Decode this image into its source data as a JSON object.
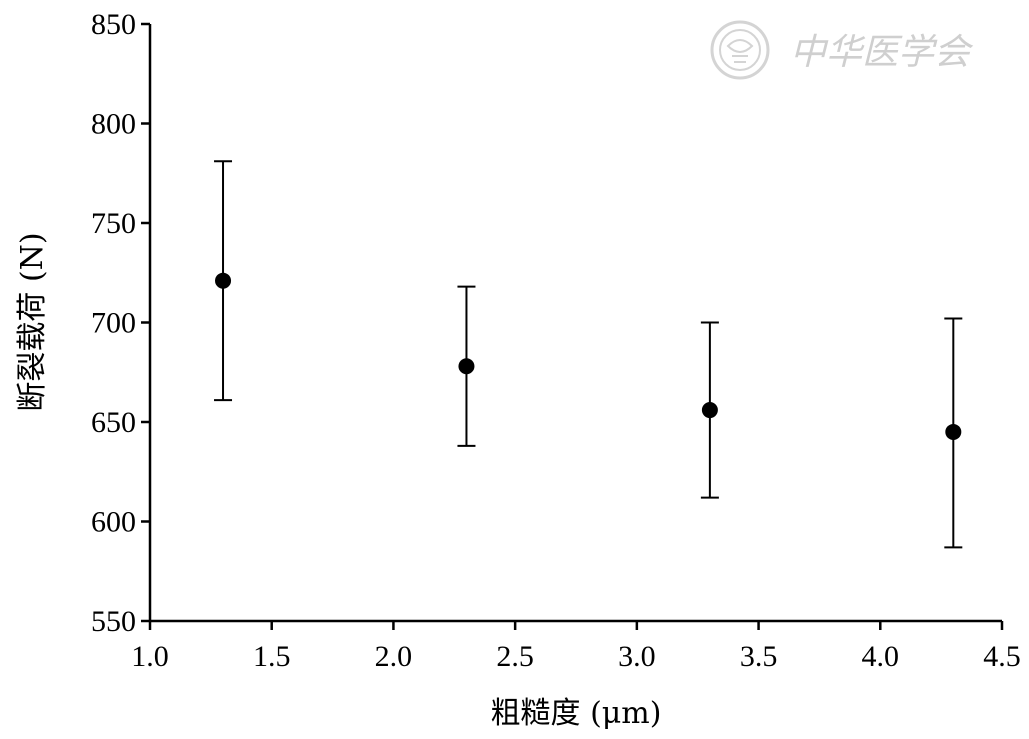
{
  "chart_data": {
    "type": "scatter",
    "xlabel": "粗糙度 (μm)",
    "ylabel": "断裂载荷 (N)",
    "xlim": [
      1.0,
      4.5
    ],
    "ylim": [
      550,
      850
    ],
    "x_ticks": [
      "1.0",
      "1.5",
      "2.0",
      "2.5",
      "3.0",
      "3.5",
      "4.0",
      "4.5"
    ],
    "y_ticks": [
      "550",
      "600",
      "650",
      "700",
      "750",
      "800",
      "850"
    ],
    "grid": false,
    "error_bars": true,
    "points": [
      {
        "x": 1.3,
        "y": 721,
        "err_low": 661,
        "err_high": 781
      },
      {
        "x": 2.3,
        "y": 678,
        "err_low": 638,
        "err_high": 718
      },
      {
        "x": 3.3,
        "y": 656,
        "err_low": 612,
        "err_high": 700
      },
      {
        "x": 4.3,
        "y": 645,
        "err_low": 587,
        "err_high": 702
      }
    ],
    "marker_color": "#000000"
  },
  "watermark": {
    "text": "中华医学会",
    "icon": "society-seal-icon"
  }
}
